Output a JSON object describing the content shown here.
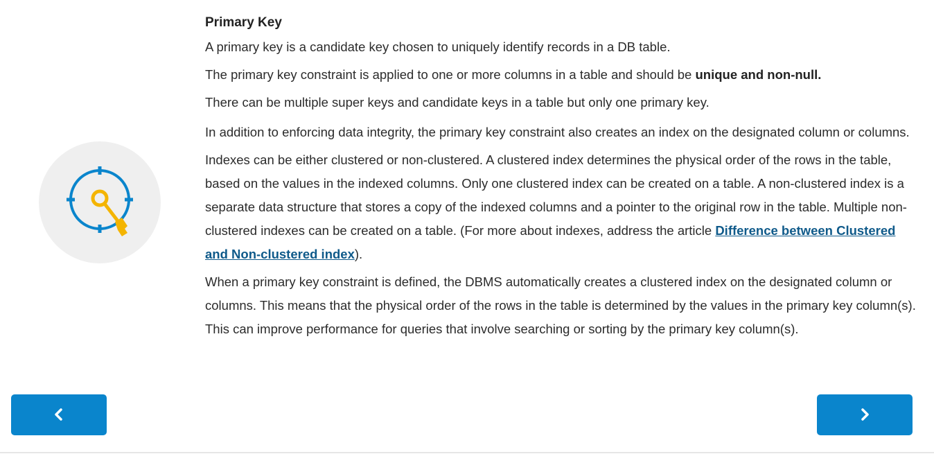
{
  "section": {
    "heading": "Primary Key",
    "p1": "A primary key is a candidate key chosen to uniquely identify records in a DB table.",
    "p2_text": "The primary key constraint is applied to one or more columns in a table and should be ",
    "p2_bold": "unique and non-null.",
    "p3": "There can be multiple super keys and candidate keys in a table but only one primary key.",
    "p4": "In addition to enforcing data integrity, the primary key constraint also creates an index on the designated column or columns.",
    "p5_text": "Indexes can be either clustered or non-clustered. A clustered index determines the physical order of the rows in the table, based on the values in the indexed columns. Only one clustered index can be created on a table. A non-clustered index is a separate data structure that stores a copy of the indexed columns and a pointer to the original row in the table. Multiple non-clustered indexes can be created on a table. (For more about indexes, address the article ",
    "p5_link": "Difference between Clustered and Non-clustered index",
    "p5_end": ").",
    "p6": "When a primary key constraint is defined, the DBMS automatically creates a clustered index on the designated column or columns. This means that the physical order of the rows in the table is determined by the values in the primary key column(s). This can improve performance for queries that involve searching or sorting by the primary key column(s)."
  },
  "illustration": {
    "icon": "target-key-icon",
    "ring_color": "#0a85cc",
    "key_color": "#f4b400",
    "bg_color": "#efefef"
  },
  "navigation": {
    "prev_icon": "chevron-left-icon",
    "next_icon": "chevron-right-icon",
    "button_color": "#0a85cc"
  }
}
